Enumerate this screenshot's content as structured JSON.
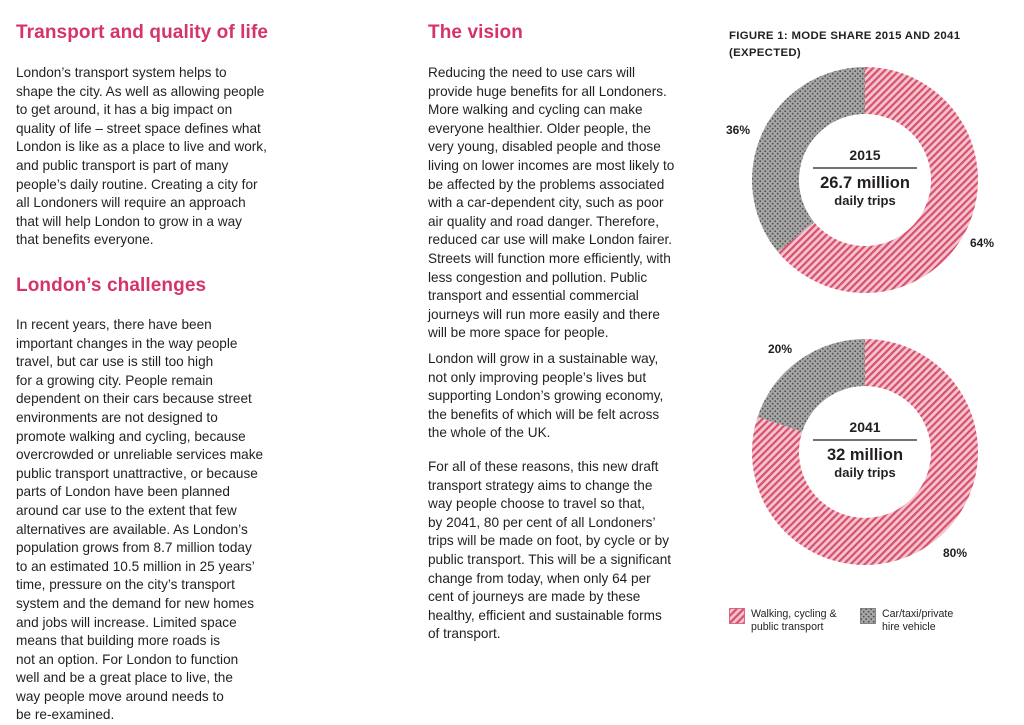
{
  "column1": {
    "heading1": "Transport and quality of life",
    "para1": "London’s transport system helps to\nshape the city. As well as allowing people\nto get around, it has a big impact on\nquality of life – street space defines what\nLondon is like as a place to live and work,\nand public transport is part of many\npeople’s daily routine. Creating a city for\nall Londoners will require an approach\nthat will help London to grow in a way\nthat benefits everyone.",
    "heading2": "London’s challenges",
    "para2": "In recent years, there have been\nimportant changes in the way people\ntravel, but car use is still too high\nfor a growing city. People remain\ndependent on their cars because street\nenvironments are not designed to\npromote walking and cycling, because\novercrowded or unreliable services make\npublic transport unattractive, or because\nparts of London have been planned\naround car use to the extent that few\nalternatives are available. As London’s\npopulation grows from 8.7 million today\nto an estimated 10.5 million in 25 years’\ntime, pressure on the city’s transport\nsystem and the demand for new homes\nand jobs will increase. Limited space\nmeans that building more roads is\nnot an option. For London to function\nwell and be a great place to live, the\nway people move around needs to\nbe re-examined."
  },
  "column2": {
    "heading": "The vision",
    "para1": "Reducing the need to use cars will\nprovide huge benefits for all Londoners.\nMore walking and cycling can make\neveryone healthier. Older people, the\nvery young, disabled people and those\nliving on lower incomes are most likely to\nbe affected by the problems associated\nwith a car-dependent city, such as poor\nair quality and road danger. Therefore,\nreduced car use will make London fairer.\nStreets will function more efficiently, with\nless congestion and pollution. Public\ntransport and essential commercial\njourneys will run more easily and there\nwill be more space for people.",
    "para2": "London will grow in a sustainable way,\nnot only improving people’s lives but\nsupporting London’s growing economy,\nthe benefits of which will be felt across\nthe whole of the UK.",
    "para3": "For all of these reasons, this new draft\ntransport strategy aims to change the\nway people choose to travel so that,\nby 2041, 80 per cent of all Londoners’\ntrips will be made on foot, by cycle or by\npublic transport. This will be a significant\nchange from today, when only 64 per\ncent of journeys are made by these\nhealthy, efficient and sustainable forms\nof transport."
  },
  "figure": {
    "title": "FIGURE 1: MODE SHARE 2015 AND 2041\n(EXPECTED)"
  },
  "colors": {
    "heading": "#d6336c",
    "sustainable": "#e8899b",
    "car": "#9a9a9a"
  },
  "chart_data": [
    {
      "type": "pie",
      "title": "FIGURE 1: MODE SHARE 2015 AND 2041 (EXPECTED)",
      "year": "2015",
      "total_line1": "26.7 million",
      "total_line2": "daily trips",
      "slices": [
        {
          "name": "Walking, cycling & public transport",
          "value": 64,
          "label": "64%"
        },
        {
          "name": "Car/taxi/private hire vehicle",
          "value": 36,
          "label": "36%"
        }
      ]
    },
    {
      "type": "pie",
      "year": "2041",
      "total_line1": "32 million",
      "total_line2": "daily trips",
      "slices": [
        {
          "name": "Walking, cycling & public transport",
          "value": 80,
          "label": "80%"
        },
        {
          "name": "Car/taxi/private hire vehicle",
          "value": 20,
          "label": "20%"
        }
      ]
    }
  ],
  "legend": [
    {
      "label": "Walking, cycling &\npublic transport",
      "pattern": "hatch"
    },
    {
      "label": "Car/taxi/private\nhire vehicle",
      "pattern": "dots"
    }
  ]
}
